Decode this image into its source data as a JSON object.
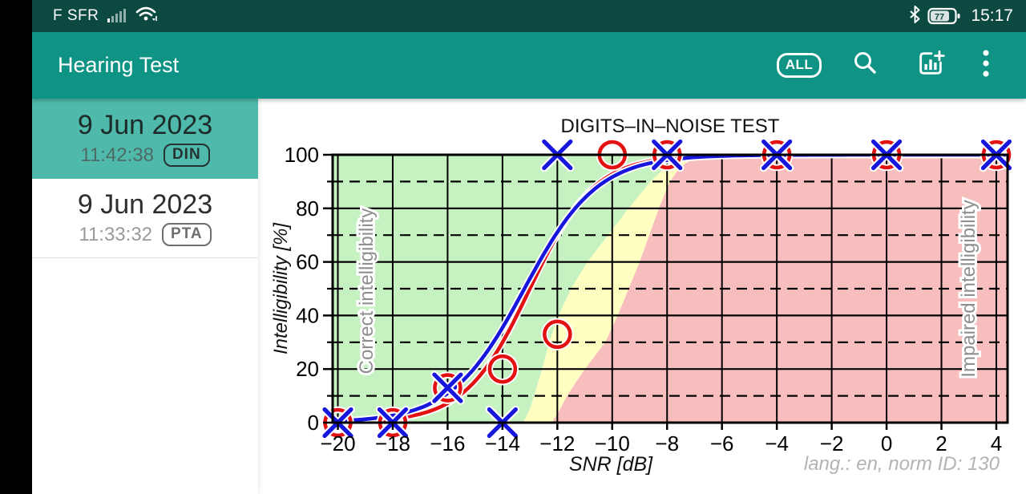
{
  "status_bar": {
    "carrier": "F SFR",
    "battery_percent": "77",
    "time": "15:17"
  },
  "app_bar": {
    "title": "Hearing Test",
    "all_label": "ALL"
  },
  "sidebar": {
    "items": [
      {
        "date": "9 Jun 2023",
        "time": "11:42:38",
        "badge": "DIN",
        "selected": true
      },
      {
        "date": "9 Jun 2023",
        "time": "11:33:32",
        "badge": "PTA",
        "selected": false
      }
    ]
  },
  "chart_data": {
    "type": "line",
    "title": "DIGITS–IN–NOISE TEST",
    "xlabel": "SNR [dB]",
    "ylabel": "Intelligibility [%]",
    "footnote": "lang.: en, norm ID: 130",
    "xlim": [
      -20.19,
      4.41
    ],
    "ylim": [
      0,
      100
    ],
    "x_ticks": [
      -20,
      -18,
      -16,
      -14,
      -12,
      -10,
      -8,
      -6,
      -4,
      -2,
      0,
      2,
      4
    ],
    "y_ticks": [
      0,
      20,
      40,
      60,
      80,
      100
    ],
    "y_dashed": [
      10,
      30,
      50,
      70,
      90
    ],
    "grid": true,
    "legend_position": "none",
    "region_labels": {
      "left": "Correct intelligibility",
      "right": "Impaired intelligibility"
    },
    "colors": {
      "green": "#c6f1c0",
      "yellow": "#ffffc2",
      "pink": "#f8bdbd",
      "blue": "#1616dd",
      "red": "#e31212",
      "label_gray": "#8f8f8f"
    },
    "series": [
      {
        "name": "red-circle-points",
        "marker": "o",
        "color": "#e31212",
        "points": [
          [
            -20,
            0
          ],
          [
            -18,
            0
          ],
          [
            -16,
            13
          ],
          [
            -14,
            20
          ],
          [
            -12,
            33
          ],
          [
            -10,
            100
          ],
          [
            -8,
            100
          ],
          [
            -4,
            100
          ],
          [
            0,
            100
          ],
          [
            4,
            100
          ]
        ],
        "fit": {
          "type": "logistic",
          "midpoint": -13.0,
          "slope": 0.85
        }
      },
      {
        "name": "blue-x-points",
        "marker": "x",
        "color": "#1616dd",
        "points": [
          [
            -20,
            0
          ],
          [
            -18,
            0
          ],
          [
            -16,
            13
          ],
          [
            -14,
            0
          ],
          [
            -12,
            100
          ],
          [
            -8,
            100
          ],
          [
            -4,
            100
          ],
          [
            0,
            100
          ],
          [
            4,
            100
          ]
        ],
        "fit": {
          "type": "logistic",
          "midpoint": -13.2,
          "slope": 0.75
        }
      }
    ],
    "norm_regions": {
      "green_boundary": [
        [
          0,
          -13.25
        ],
        [
          5,
          -13.0
        ],
        [
          10,
          -12.85
        ],
        [
          20,
          -12.55
        ],
        [
          30,
          -12.3
        ],
        [
          40,
          -11.95
        ],
        [
          50,
          -11.5
        ],
        [
          60,
          -10.9
        ],
        [
          70,
          -10.15
        ],
        [
          80,
          -9.4
        ],
        [
          90,
          -8.6
        ],
        [
          95,
          -8.1
        ],
        [
          100,
          -7.3
        ]
      ],
      "red_boundary": [
        [
          0,
          -12.2
        ],
        [
          5,
          -11.9
        ],
        [
          10,
          -11.65
        ],
        [
          20,
          -11.0
        ],
        [
          30,
          -10.25
        ],
        [
          40,
          -9.8
        ],
        [
          50,
          -9.4
        ],
        [
          60,
          -9.0
        ],
        [
          70,
          -8.65
        ],
        [
          80,
          -8.3
        ],
        [
          90,
          -7.9
        ],
        [
          95,
          -7.55
        ],
        [
          100,
          -6.9
        ]
      ]
    }
  }
}
